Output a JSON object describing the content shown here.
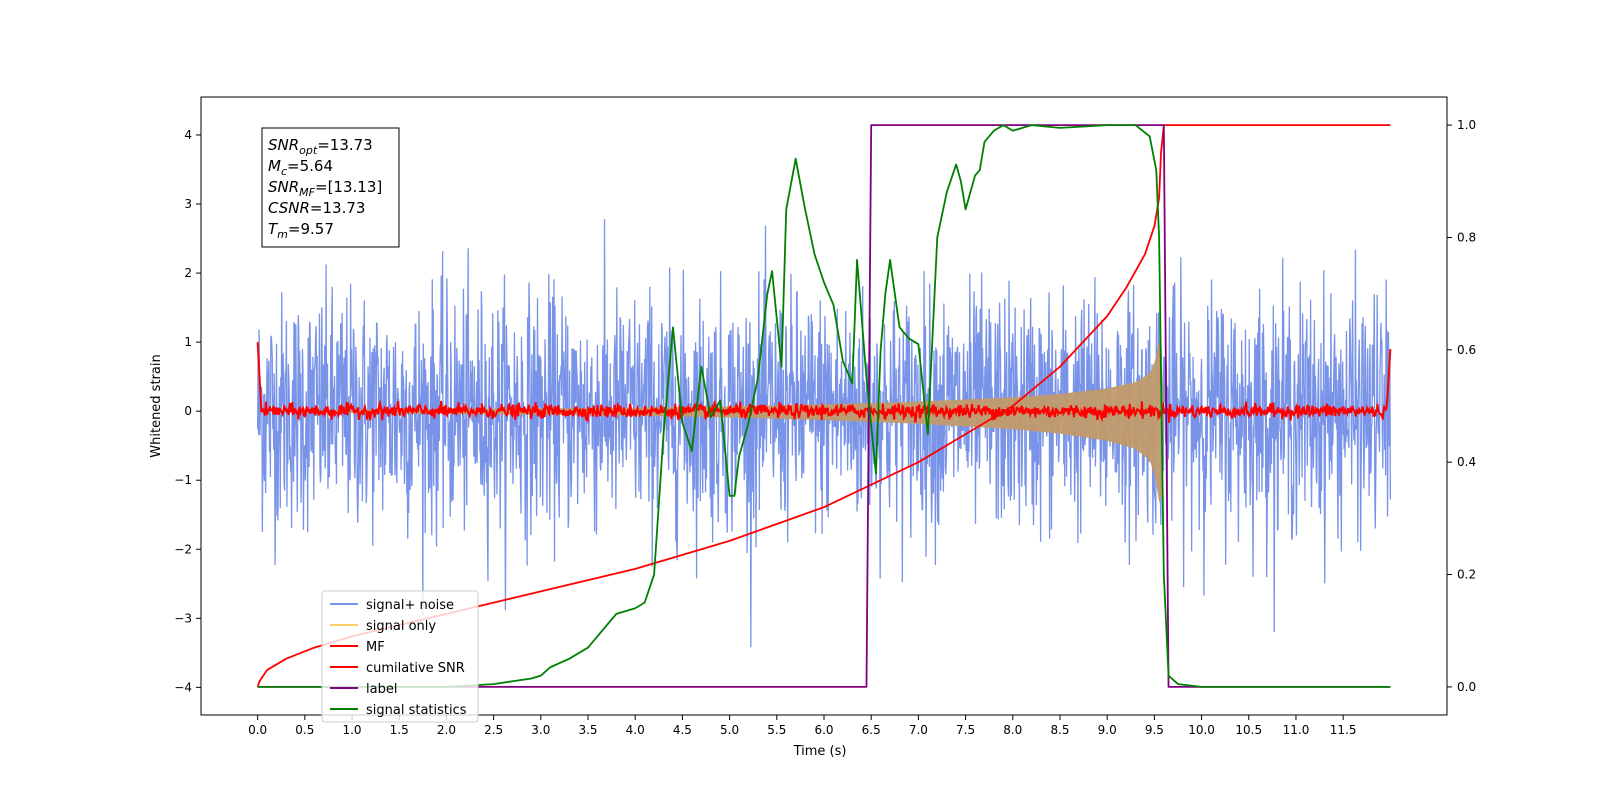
{
  "chart_data": {
    "type": "line",
    "xlabel": "Time (s)",
    "ylabel": "Whitened strain",
    "xlim": [
      -0.6,
      12.6
    ],
    "ylim": [
      -4.4,
      4.55
    ],
    "ylim_right": [
      -0.05,
      1.05
    ],
    "x_ticks": [
      "0.0",
      "0.5",
      "1.0",
      "1.5",
      "2.0",
      "2.5",
      "3.0",
      "3.5",
      "4.0",
      "4.5",
      "5.0",
      "5.5",
      "6.0",
      "6.5",
      "7.0",
      "7.5",
      "8.0",
      "8.5",
      "9.0",
      "9.5",
      "10.0",
      "10.5",
      "11.0",
      "11.5"
    ],
    "y_ticks": [
      "4",
      "3",
      "2",
      "1",
      "0",
      "−1",
      "−2",
      "−3",
      "−4"
    ],
    "y_right_ticks": [
      "1.0",
      "0.8",
      "0.6",
      "0.4",
      "0.2",
      "0.0"
    ],
    "grid": false,
    "legend_position": "lower-left",
    "annotation": {
      "lines": [
        {
          "label": "SNR",
          "sub": "opt",
          "value": "=13.73"
        },
        {
          "label": "M",
          "sub": "c",
          "value": "=5.64"
        },
        {
          "label": "SNR",
          "sub": "MF",
          "value": "=[13.13]"
        },
        {
          "label": "CSNR",
          "sub": "",
          "value": "=13.73"
        },
        {
          "label": "T",
          "sub": "m",
          "value": "=9.57"
        }
      ]
    },
    "series": [
      {
        "name": "signal+ noise",
        "color": "#7893e8",
        "axis": "left",
        "noise_std": 0.85,
        "x_range": [
          0.0,
          12.0
        ]
      },
      {
        "name": "signal only",
        "color": "#ffcc66",
        "axis": "left",
        "envelope": {
          "x": [
            0.0,
            1.0,
            2.0,
            3.0,
            4.0,
            5.0,
            6.0,
            7.0,
            8.0,
            8.5,
            9.0,
            9.3,
            9.45,
            9.5,
            9.55,
            9.57,
            9.6
          ],
          "amp": [
            0.0,
            0.02,
            0.03,
            0.04,
            0.05,
            0.07,
            0.1,
            0.14,
            0.2,
            0.25,
            0.33,
            0.42,
            0.55,
            0.7,
            1.0,
            1.2,
            0.0
          ]
        }
      },
      {
        "name": "MF",
        "color": "#ff0000",
        "axis": "left",
        "noise_std": 0.05,
        "x_range": [
          0.0,
          12.0
        ]
      },
      {
        "name": "cumilative SNR",
        "color": "#ff0000",
        "axis": "right",
        "x": [
          0.0,
          0.02,
          0.1,
          0.3,
          0.6,
          1.0,
          1.5,
          2.0,
          2.5,
          3.0,
          3.5,
          4.0,
          4.5,
          5.0,
          5.5,
          6.0,
          6.5,
          7.0,
          7.5,
          8.0,
          8.5,
          9.0,
          9.2,
          9.4,
          9.5,
          9.55,
          9.57,
          9.6,
          12.0
        ],
        "y": [
          0.0,
          0.01,
          0.03,
          0.05,
          0.07,
          0.09,
          0.11,
          0.13,
          0.15,
          0.17,
          0.19,
          0.21,
          0.235,
          0.26,
          0.29,
          0.32,
          0.36,
          0.4,
          0.45,
          0.5,
          0.57,
          0.66,
          0.71,
          0.77,
          0.82,
          0.87,
          0.95,
          1.0,
          1.0
        ]
      },
      {
        "name": "label",
        "color": "#800080",
        "axis": "right",
        "x": [
          0.0,
          6.45,
          6.5,
          9.6,
          9.65,
          12.0
        ],
        "y": [
          0.0,
          0.0,
          1.0,
          1.0,
          0.0,
          0.0
        ]
      },
      {
        "name": "signal statistics",
        "color": "#008000",
        "axis": "right",
        "x": [
          0.0,
          1.0,
          2.0,
          2.5,
          2.7,
          2.9,
          3.0,
          3.1,
          3.3,
          3.5,
          3.6,
          3.8,
          4.0,
          4.1,
          4.2,
          4.3,
          4.4,
          4.5,
          4.6,
          4.7,
          4.8,
          4.9,
          5.0,
          5.05,
          5.1,
          5.2,
          5.3,
          5.4,
          5.45,
          5.55,
          5.6,
          5.7,
          5.8,
          5.9,
          6.0,
          6.1,
          6.2,
          6.3,
          6.35,
          6.45,
          6.55,
          6.6,
          6.65,
          6.7,
          6.8,
          6.9,
          7.0,
          7.1,
          7.2,
          7.3,
          7.4,
          7.45,
          7.5,
          7.6,
          7.65,
          7.7,
          7.8,
          7.9,
          8.0,
          8.2,
          8.5,
          9.0,
          9.3,
          9.45,
          9.52,
          9.55,
          9.6,
          9.65,
          9.75,
          10.0,
          12.0
        ],
        "y": [
          0.0,
          0.0,
          0.0,
          0.005,
          0.01,
          0.015,
          0.02,
          0.035,
          0.05,
          0.07,
          0.09,
          0.13,
          0.14,
          0.15,
          0.2,
          0.45,
          0.64,
          0.47,
          0.42,
          0.57,
          0.48,
          0.51,
          0.34,
          0.34,
          0.41,
          0.47,
          0.55,
          0.7,
          0.74,
          0.57,
          0.85,
          0.94,
          0.85,
          0.77,
          0.72,
          0.68,
          0.58,
          0.54,
          0.76,
          0.55,
          0.38,
          0.6,
          0.7,
          0.76,
          0.64,
          0.62,
          0.61,
          0.45,
          0.8,
          0.88,
          0.93,
          0.9,
          0.85,
          0.91,
          0.92,
          0.97,
          0.99,
          1.0,
          0.99,
          1.0,
          0.995,
          1.0,
          1.0,
          0.98,
          0.92,
          0.8,
          0.2,
          0.02,
          0.005,
          0.0,
          0.0
        ]
      }
    ]
  }
}
